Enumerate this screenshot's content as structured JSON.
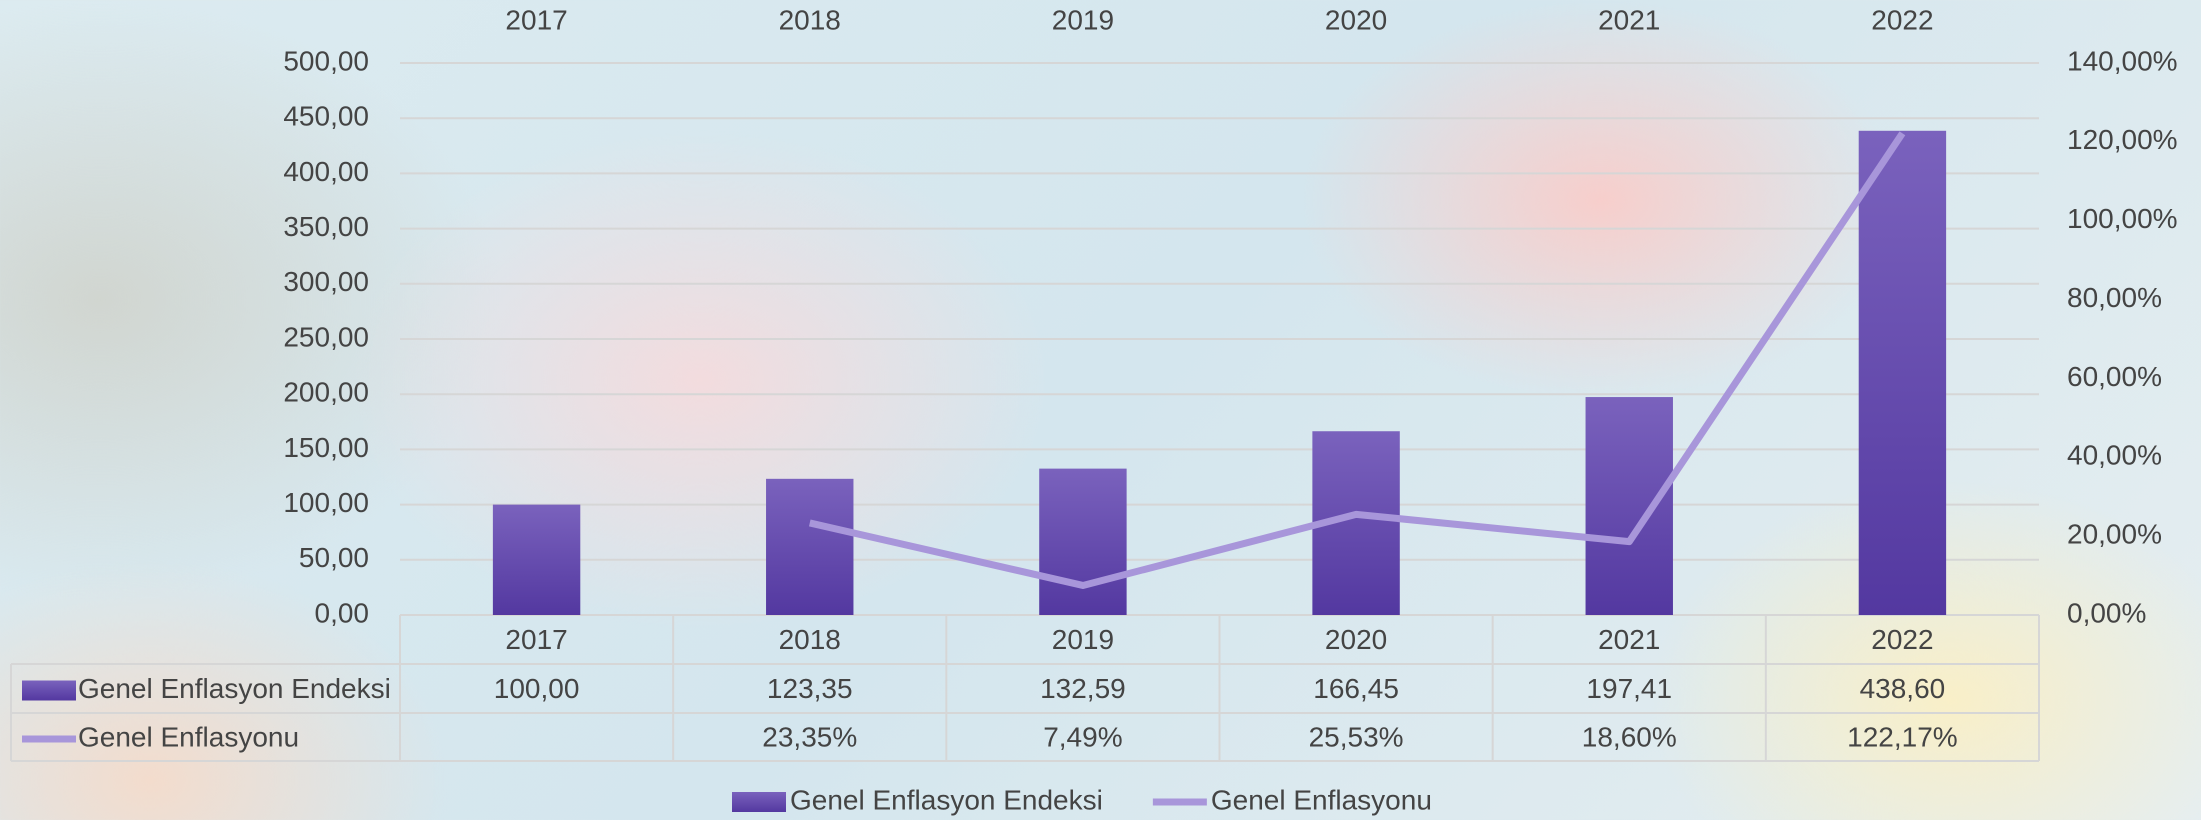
{
  "chart_data": {
    "type": "bar",
    "categories": [
      "2017",
      "2018",
      "2019",
      "2020",
      "2021",
      "2022"
    ],
    "series": [
      {
        "name": "Genel Enflasyon Endeksi",
        "color": "#5f43a8",
        "values": [
          100,
          123.35,
          132.59,
          166.45,
          197.41,
          438.6
        ],
        "value_labels": [
          "100,00",
          "123,35",
          "132,59",
          "166,45",
          "197,41",
          "438,60"
        ]
      },
      {
        "name": "Genel Enflasyonu",
        "type": "line",
        "axis": "y2",
        "color": "#a896da",
        "values": [
          null,
          23.35,
          7.49,
          25.53,
          18.6,
          122.17
        ],
        "value_labels": [
          null,
          "23,35%",
          "7,49%",
          "25,53%",
          "18,60%",
          "122,17%"
        ]
      }
    ],
    "ylim": [
      0,
      500
    ],
    "yticks": [
      {
        "value": 0,
        "label": "0,00"
      },
      {
        "value": 50,
        "label": "50,00"
      },
      {
        "value": 100,
        "label": "100,00"
      },
      {
        "value": 150,
        "label": "150,00"
      },
      {
        "value": 200,
        "label": "200,00"
      },
      {
        "value": 250,
        "label": "250,00"
      },
      {
        "value": 300,
        "label": "300,00"
      },
      {
        "value": 350,
        "label": "350,00"
      },
      {
        "value": 400,
        "label": "400,00"
      },
      {
        "value": 450,
        "label": "450,00"
      },
      {
        "value": 500,
        "label": "500,00"
      }
    ],
    "y2lim": [
      0,
      140
    ],
    "y2ticks": [
      {
        "value": 0,
        "label": "0,00%"
      },
      {
        "value": 20,
        "label": "20,00%"
      },
      {
        "value": 40,
        "label": "40,00%"
      },
      {
        "value": 60,
        "label": "60,00%"
      },
      {
        "value": 80,
        "label": "80,00%"
      },
      {
        "value": 100,
        "label": "100,00%"
      },
      {
        "value": 120,
        "label": "120,00%"
      },
      {
        "value": 140,
        "label": "140,00%"
      }
    ],
    "grid": true,
    "legend": "bottom",
    "data_table": true
  }
}
